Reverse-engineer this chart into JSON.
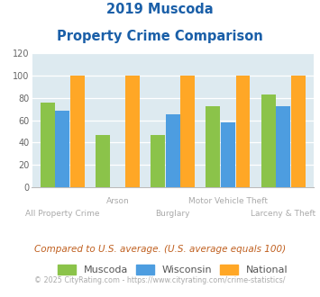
{
  "title_line1": "2019 Muscoda",
  "title_line2": "Property Crime Comparison",
  "categories": [
    "All Property Crime",
    "Arson",
    "Burglary",
    "Motor Vehicle Theft",
    "Larceny & Theft"
  ],
  "muscoda": [
    76,
    47,
    47,
    73,
    83
  ],
  "wisconsin": [
    69,
    0,
    65,
    58,
    73
  ],
  "national": [
    100,
    100,
    100,
    100,
    100
  ],
  "color_muscoda": "#8bc34a",
  "color_wisconsin": "#4d9de0",
  "color_national": "#ffa726",
  "ylim": [
    0,
    120
  ],
  "yticks": [
    0,
    20,
    40,
    60,
    80,
    100,
    120
  ],
  "bg_color": "#ddeaf0",
  "title_color": "#1a5fa8",
  "label_color": "#aaaaaa",
  "legend_labels": [
    "Muscoda",
    "Wisconsin",
    "National"
  ],
  "legend_text_color": "#555555",
  "footer_text": "Compared to U.S. average. (U.S. average equals 100)",
  "copyright_text": "© 2025 CityRating.com - https://www.cityrating.com/crime-statistics/",
  "footer_color": "#c06020",
  "copyright_color": "#aaaaaa",
  "bar_width": 0.26,
  "bar_gap": 0.01
}
